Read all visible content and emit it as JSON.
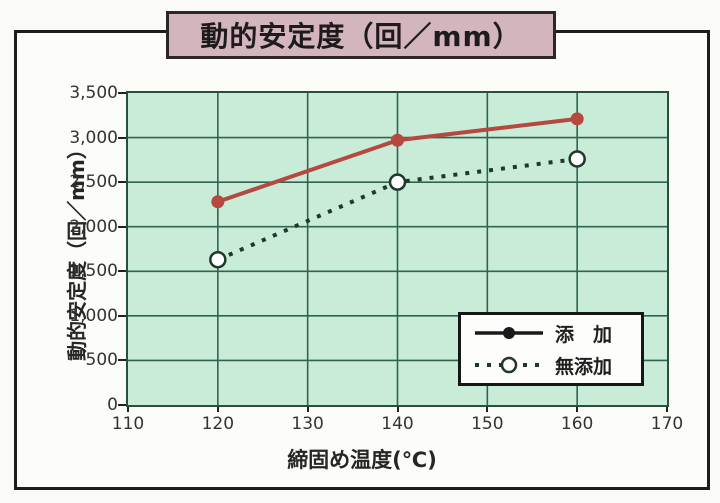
{
  "header": {
    "title": "動的安定度（回／mm）"
  },
  "chart_data": {
    "type": "line",
    "title": "動的安定度（回／mm）",
    "xlabel": "締固め温度(℃)",
    "ylabel": "動的安定度（回／mm）",
    "xlim": [
      110,
      170
    ],
    "ylim": [
      0,
      3500
    ],
    "xticks": [
      110,
      120,
      130,
      140,
      150,
      160,
      170
    ],
    "yticks": [
      0,
      500,
      1000,
      1500,
      2000,
      2500,
      3000,
      3500
    ],
    "grid": true,
    "legend_position": "lower-right",
    "x": [
      120,
      140,
      160
    ],
    "series": [
      {
        "name": "添加",
        "label": "添　加",
        "values": [
          2280,
          2970,
          3210
        ],
        "style": "solid",
        "marker": "filled-circle",
        "color": "#b5483f",
        "legend_color": "#1a1a1a"
      },
      {
        "name": "無添加",
        "label": "無添加",
        "values": [
          1630,
          2500,
          2760
        ],
        "style": "dotted",
        "marker": "open-circle",
        "color": "#20372b",
        "legend_color": "#20372b"
      }
    ],
    "colors": {
      "plot_background": "#c9ecd8",
      "grid_line": "#2f6550",
      "plot_border": "#29503e",
      "title_box_background": "#d3b6bd",
      "frame_border": "#1d1d1d",
      "accent_red": "#b5483f"
    }
  }
}
